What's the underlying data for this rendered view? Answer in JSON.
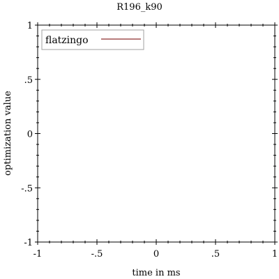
{
  "chart_data": {
    "type": "line",
    "title": "R196_k90",
    "xlabel": "time in ms",
    "ylabel": "optimization value",
    "xlim": [
      -1,
      1
    ],
    "ylim": [
      -1,
      1
    ],
    "x_ticks": [
      {
        "value": -1,
        "label": "-1"
      },
      {
        "value": -0.5,
        "label": "-.5"
      },
      {
        "value": 0,
        "label": "0"
      },
      {
        "value": 0.5,
        "label": ".5"
      },
      {
        "value": 1,
        "label": "1"
      }
    ],
    "y_ticks": [
      {
        "value": 1,
        "label": "1"
      },
      {
        "value": 0.5,
        "label": ".5"
      },
      {
        "value": 0,
        "label": "0"
      },
      {
        "value": -0.5,
        "label": "-.5"
      },
      {
        "value": -1,
        "label": "-1"
      }
    ],
    "grid": false,
    "legend_position": "top-left",
    "series": [
      {
        "name": "flatzingo",
        "color": "#a05050",
        "points": []
      }
    ]
  }
}
